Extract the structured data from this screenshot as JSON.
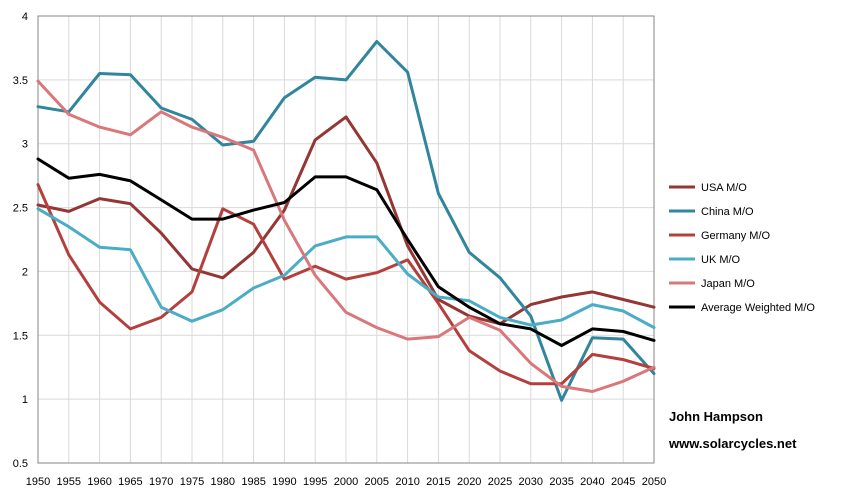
{
  "chart_data": {
    "type": "line",
    "title": "",
    "xlabel": "",
    "ylabel": "",
    "ylim": [
      0.5,
      4
    ],
    "yticks": [
      "0.5",
      "1",
      "1.5",
      "2",
      "2.5",
      "3",
      "3.5",
      "4"
    ],
    "x": [
      "1950",
      "1955",
      "1960",
      "1965",
      "1970",
      "1975",
      "1980",
      "1985",
      "1990",
      "1995",
      "2000",
      "2005",
      "2010",
      "2015",
      "2020",
      "2025",
      "2030",
      "2035",
      "2040",
      "2045",
      "2050"
    ],
    "grid": true,
    "legend_position": "right",
    "series": [
      {
        "name": "USA M/O",
        "color": "#943634",
        "values": [
          2.52,
          2.47,
          2.57,
          2.53,
          2.3,
          2.02,
          1.95,
          2.15,
          2.48,
          3.03,
          3.21,
          2.85,
          2.2,
          1.78,
          1.65,
          1.59,
          1.74,
          1.8,
          1.84,
          1.78,
          1.72
        ]
      },
      {
        "name": "China M/O",
        "color": "#31859C",
        "values": [
          3.29,
          3.25,
          3.55,
          3.54,
          3.28,
          3.19,
          2.99,
          3.02,
          3.36,
          3.52,
          3.5,
          3.8,
          3.56,
          2.61,
          2.15,
          1.95,
          1.65,
          0.99,
          1.48,
          1.47,
          1.2
        ]
      },
      {
        "name": "Germany M/O",
        "color": "#B3403D",
        "values": [
          2.68,
          2.13,
          1.76,
          1.55,
          1.64,
          1.84,
          2.49,
          2.37,
          1.94,
          2.04,
          1.94,
          1.99,
          2.09,
          1.75,
          1.38,
          1.22,
          1.12,
          1.12,
          1.35,
          1.31,
          1.24
        ]
      },
      {
        "name": "UK M/O",
        "color": "#4BACC6",
        "values": [
          2.49,
          2.35,
          2.19,
          2.17,
          1.72,
          1.61,
          1.7,
          1.87,
          1.97,
          2.2,
          2.27,
          2.27,
          1.98,
          1.8,
          1.77,
          1.64,
          1.58,
          1.62,
          1.74,
          1.69,
          1.56
        ]
      },
      {
        "name": "Japan M/O",
        "color": "#D9777A",
        "values": [
          3.49,
          3.23,
          3.13,
          3.07,
          3.25,
          3.13,
          3.05,
          2.95,
          2.4,
          1.97,
          1.68,
          1.56,
          1.47,
          1.49,
          1.64,
          1.54,
          1.28,
          1.1,
          1.06,
          1.14,
          1.25
        ]
      },
      {
        "name": "Average Weighted M/O",
        "color": "#000000",
        "values": [
          2.88,
          2.73,
          2.76,
          2.71,
          2.56,
          2.41,
          2.41,
          2.48,
          2.54,
          2.74,
          2.74,
          2.64,
          2.25,
          1.88,
          1.72,
          1.59,
          1.55,
          1.42,
          1.55,
          1.53,
          1.46
        ]
      }
    ],
    "annotations": [
      "John Hampson",
      "www.solarcycles.net"
    ]
  }
}
